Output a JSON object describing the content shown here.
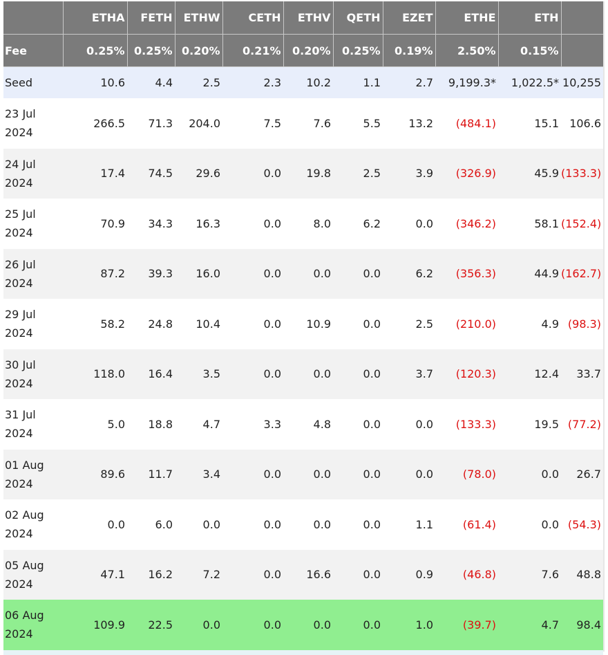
{
  "header": {
    "tickers": [
      "",
      "ETHA",
      "FETH",
      "ETHW",
      "CETH",
      "ETHV",
      "QETH",
      "EZET",
      "ETHE",
      "ETH",
      ""
    ],
    "fee_label": "Fee",
    "fees": [
      "0.25%",
      "0.25%",
      "0.20%",
      "0.21%",
      "0.20%",
      "0.25%",
      "0.19%",
      "2.50%",
      "0.15%",
      ""
    ]
  },
  "rows": [
    {
      "date": "Seed",
      "values": [
        "10.6",
        "4.4",
        "2.5",
        "2.3",
        "10.2",
        "1.1",
        "2.7",
        "9,199.3*",
        "1,022.5*",
        "10,255"
      ],
      "negative": [
        false,
        false,
        false,
        false,
        false,
        false,
        false,
        false,
        false,
        false
      ]
    },
    {
      "date": "23 Jul 2024",
      "values": [
        "266.5",
        "71.3",
        "204.0",
        "7.5",
        "7.6",
        "5.5",
        "13.2",
        "(484.1)",
        "15.1",
        "106.6"
      ],
      "negative": [
        false,
        false,
        false,
        false,
        false,
        false,
        false,
        true,
        false,
        false
      ]
    },
    {
      "date": "24 Jul 2024",
      "values": [
        "17.4",
        "74.5",
        "29.6",
        "0.0",
        "19.8",
        "2.5",
        "3.9",
        "(326.9)",
        "45.9",
        "(133.3)"
      ],
      "negative": [
        false,
        false,
        false,
        false,
        false,
        false,
        false,
        true,
        false,
        true
      ]
    },
    {
      "date": "25 Jul 2024",
      "values": [
        "70.9",
        "34.3",
        "16.3",
        "0.0",
        "8.0",
        "6.2",
        "0.0",
        "(346.2)",
        "58.1",
        "(152.4)"
      ],
      "negative": [
        false,
        false,
        false,
        false,
        false,
        false,
        false,
        true,
        false,
        true
      ]
    },
    {
      "date": "26 Jul 2024",
      "values": [
        "87.2",
        "39.3",
        "16.0",
        "0.0",
        "0.0",
        "0.0",
        "6.2",
        "(356.3)",
        "44.9",
        "(162.7)"
      ],
      "negative": [
        false,
        false,
        false,
        false,
        false,
        false,
        false,
        true,
        false,
        true
      ]
    },
    {
      "date": "29 Jul 2024",
      "values": [
        "58.2",
        "24.8",
        "10.4",
        "0.0",
        "10.9",
        "0.0",
        "2.5",
        "(210.0)",
        "4.9",
        "(98.3)"
      ],
      "negative": [
        false,
        false,
        false,
        false,
        false,
        false,
        false,
        true,
        false,
        true
      ]
    },
    {
      "date": "30 Jul 2024",
      "values": [
        "118.0",
        "16.4",
        "3.5",
        "0.0",
        "0.0",
        "0.0",
        "3.7",
        "(120.3)",
        "12.4",
        "33.7"
      ],
      "negative": [
        false,
        false,
        false,
        false,
        false,
        false,
        false,
        true,
        false,
        false
      ]
    },
    {
      "date": "31 Jul 2024",
      "values": [
        "5.0",
        "18.8",
        "4.7",
        "3.3",
        "4.8",
        "0.0",
        "0.0",
        "(133.3)",
        "19.5",
        "(77.2)"
      ],
      "negative": [
        false,
        false,
        false,
        false,
        false,
        false,
        false,
        true,
        false,
        true
      ]
    },
    {
      "date": "01 Aug 2024",
      "values": [
        "89.6",
        "11.7",
        "3.4",
        "0.0",
        "0.0",
        "0.0",
        "0.0",
        "(78.0)",
        "0.0",
        "26.7"
      ],
      "negative": [
        false,
        false,
        false,
        false,
        false,
        false,
        false,
        true,
        false,
        false
      ]
    },
    {
      "date": "02 Aug 2024",
      "values": [
        "0.0",
        "6.0",
        "0.0",
        "0.0",
        "0.0",
        "0.0",
        "1.1",
        "(61.4)",
        "0.0",
        "(54.3)"
      ],
      "negative": [
        false,
        false,
        false,
        false,
        false,
        false,
        false,
        true,
        false,
        true
      ]
    },
    {
      "date": "05 Aug 2024",
      "values": [
        "47.1",
        "16.2",
        "7.2",
        "0.0",
        "16.6",
        "0.0",
        "0.9",
        "(46.8)",
        "7.6",
        "48.8"
      ],
      "negative": [
        false,
        false,
        false,
        false,
        false,
        false,
        false,
        true,
        false,
        false
      ]
    },
    {
      "date": "06 Aug 2024",
      "values": [
        "109.9",
        "22.5",
        "0.0",
        "0.0",
        "0.0",
        "0.0",
        "1.0",
        "(39.7)",
        "4.7",
        "98.4"
      ],
      "negative": [
        false,
        false,
        false,
        false,
        false,
        false,
        false,
        true,
        false,
        false
      ],
      "highlighted": true
    }
  ],
  "colors": {
    "header_bg": "#7b7b7b",
    "header_text": "#ffffff",
    "seed_row_bg": "#e8eefb",
    "alt_row_bg": "#f2f2f2",
    "highlight_row_bg": "#90ee90",
    "negative_text": "#dd1111"
  }
}
